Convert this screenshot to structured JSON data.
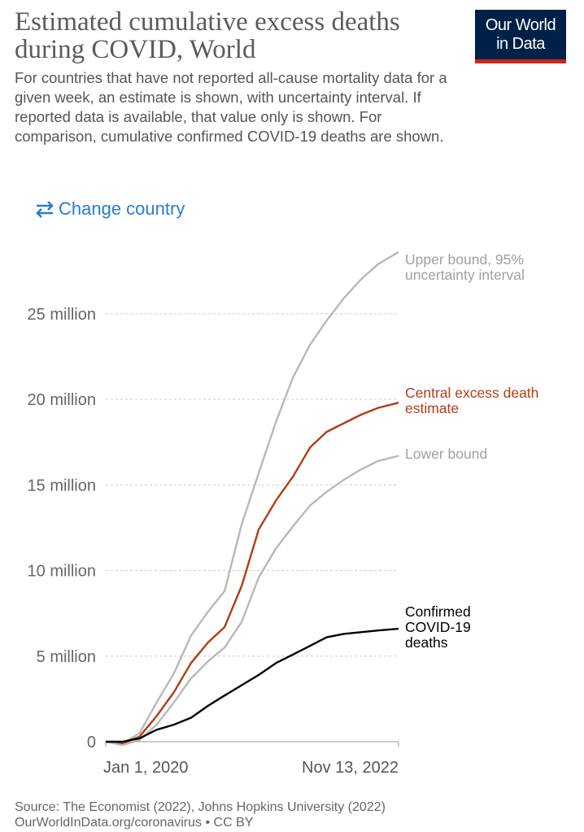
{
  "header": {
    "title": "Estimated cumulative excess deaths during COVID, World",
    "subtitle": "For countries that have not reported all-cause mortality data for a given week, an estimate is shown, with uncertainty interval. If reported data is available, that value only is shown. For comparison, cumulative confirmed COVID-19 deaths are shown.",
    "logo": [
      "Our World",
      "in Data"
    ],
    "button": "Change country"
  },
  "chart_data": {
    "type": "line",
    "x": [
      "2020-01-01",
      "2020-03-01",
      "2020-05-01",
      "2020-07-01",
      "2020-09-01",
      "2020-11-01",
      "2021-01-01",
      "2021-03-01",
      "2021-05-01",
      "2021-07-01",
      "2021-09-01",
      "2021-11-01",
      "2022-01-01",
      "2022-03-01",
      "2022-05-01",
      "2022-07-01",
      "2022-09-01",
      "2022-11-13"
    ],
    "series": [
      {
        "name": "Upper bound, 95% uncertainty interval",
        "color": "#b8b8b8",
        "values": [
          0,
          -100000,
          500000,
          2300000,
          4000000,
          6200000,
          7600000,
          8800000,
          12700000,
          15700000,
          18700000,
          21300000,
          23200000,
          24600000,
          25900000,
          27000000,
          27900000,
          28600000
        ]
      },
      {
        "name": "Central excess death estimate",
        "color": "#b13d14",
        "values": [
          0,
          -100000,
          300000,
          1500000,
          2900000,
          4600000,
          5800000,
          6700000,
          9100000,
          12400000,
          14100000,
          15500000,
          17200000,
          18100000,
          18600000,
          19100000,
          19500000,
          19800000
        ]
      },
      {
        "name": "Lower bound",
        "color": "#b8b8b8",
        "values": [
          0,
          -200000,
          100000,
          1000000,
          2300000,
          3700000,
          4700000,
          5500000,
          7000000,
          9600000,
          11300000,
          12600000,
          13800000,
          14600000,
          15300000,
          15900000,
          16400000,
          16700000
        ]
      },
      {
        "name": "Confirmed COVID-19 deaths",
        "color": "#000000",
        "values": [
          0,
          0,
          200000,
          700000,
          1000000,
          1400000,
          2100000,
          2700000,
          3300000,
          3900000,
          4600000,
          5100000,
          5600000,
          6100000,
          6300000,
          6400000,
          6500000,
          6600000
        ]
      }
    ],
    "xlim": [
      "2020-01-01",
      "2022-11-13"
    ],
    "xticks": [
      {
        "value": "2020-01-01",
        "label": "Jan 1, 2020"
      },
      {
        "value": "2022-11-13",
        "label": "Nov 13, 2022"
      }
    ],
    "ylim": [
      0,
      28600000
    ],
    "yticks": [
      0,
      {
        "value": 5000000,
        "label": "5 million"
      },
      {
        "value": 10000000,
        "label": "10 million"
      },
      {
        "value": 15000000,
        "label": "15 million"
      },
      {
        "value": 20000000,
        "label": "20 million"
      },
      {
        "value": 25000000,
        "label": "25 million"
      }
    ],
    "grid": true
  },
  "footer": {
    "source": "Source: The Economist (2022), Johns Hopkins University (2022)",
    "link": "OurWorldInData.org/coronavirus • CC BY"
  }
}
